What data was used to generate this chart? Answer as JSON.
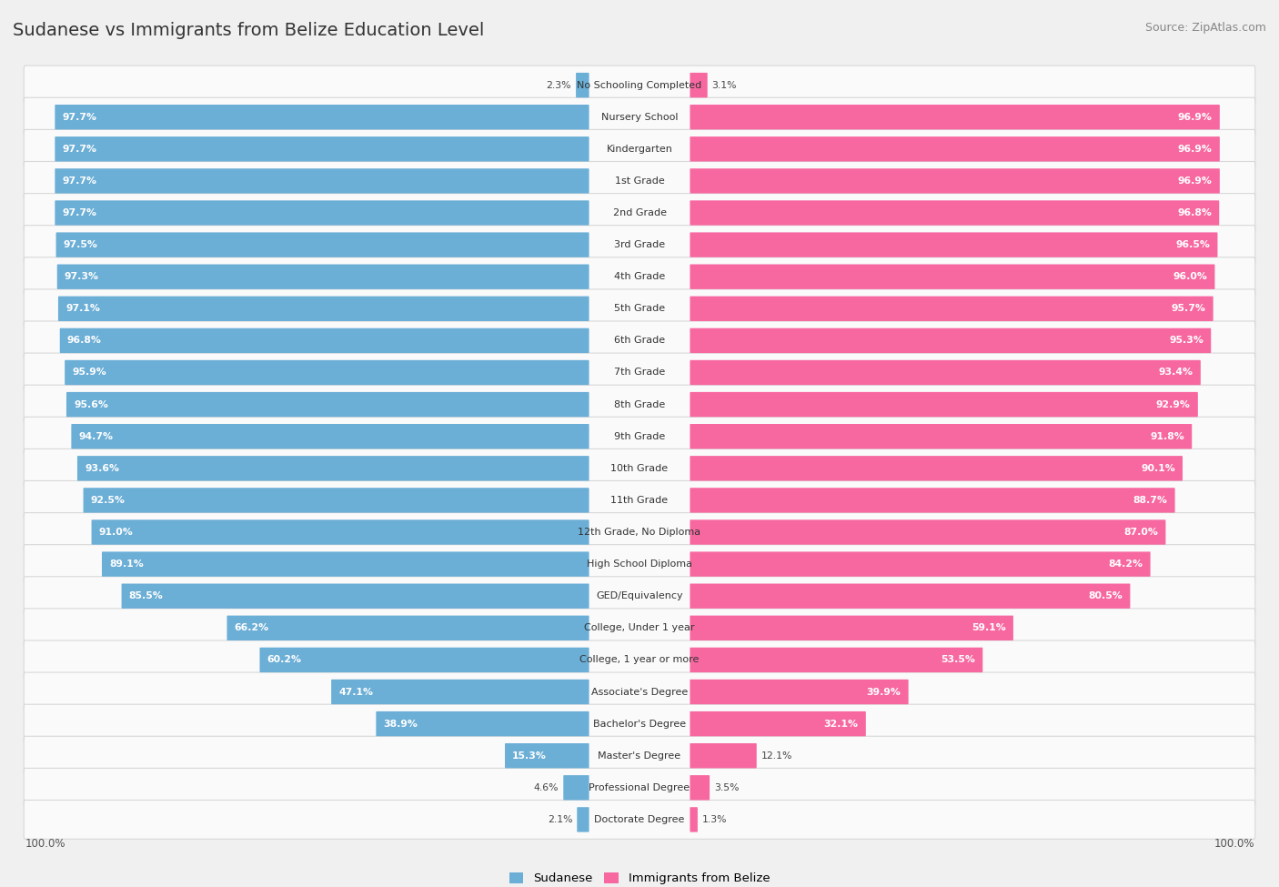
{
  "title": "Sudanese vs Immigrants from Belize Education Level",
  "source": "Source: ZipAtlas.com",
  "categories": [
    "No Schooling Completed",
    "Nursery School",
    "Kindergarten",
    "1st Grade",
    "2nd Grade",
    "3rd Grade",
    "4th Grade",
    "5th Grade",
    "6th Grade",
    "7th Grade",
    "8th Grade",
    "9th Grade",
    "10th Grade",
    "11th Grade",
    "12th Grade, No Diploma",
    "High School Diploma",
    "GED/Equivalency",
    "College, Under 1 year",
    "College, 1 year or more",
    "Associate's Degree",
    "Bachelor's Degree",
    "Master's Degree",
    "Professional Degree",
    "Doctorate Degree"
  ],
  "sudanese": [
    2.3,
    97.7,
    97.7,
    97.7,
    97.7,
    97.5,
    97.3,
    97.1,
    96.8,
    95.9,
    95.6,
    94.7,
    93.6,
    92.5,
    91.0,
    89.1,
    85.5,
    66.2,
    60.2,
    47.1,
    38.9,
    15.3,
    4.6,
    2.1
  ],
  "belize": [
    3.1,
    96.9,
    96.9,
    96.9,
    96.8,
    96.5,
    96.0,
    95.7,
    95.3,
    93.4,
    92.9,
    91.8,
    90.1,
    88.7,
    87.0,
    84.2,
    80.5,
    59.1,
    53.5,
    39.9,
    32.1,
    12.1,
    3.5,
    1.3
  ],
  "sudanese_color": "#6baed6",
  "belize_color": "#f768a1",
  "background_color": "#f0f0f0",
  "bar_bg_color": "#fafafa",
  "row_alt_color": "#f5f5f5",
  "legend_sudanese": "Sudanese",
  "legend_belize": "Immigrants from Belize"
}
